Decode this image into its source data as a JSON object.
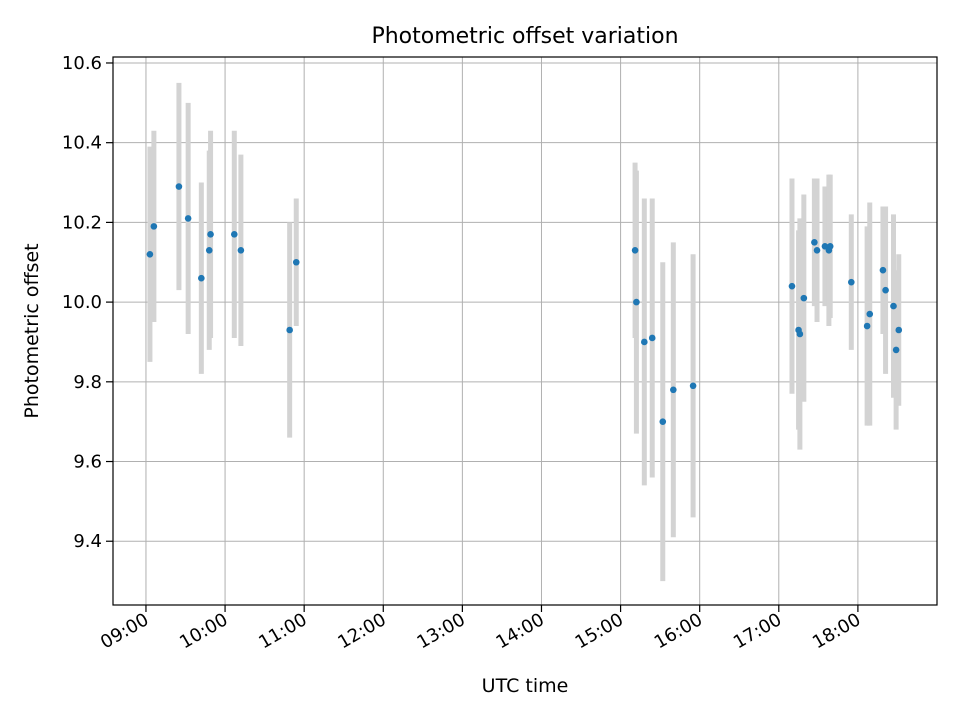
{
  "chart_data": {
    "type": "scatter",
    "title": "Photometric offset variation",
    "xlabel": "UTC time",
    "ylabel": "Photometric offset",
    "xlim": [
      "08:35",
      "19:00"
    ],
    "ylim": [
      9.24,
      10.615
    ],
    "grid": true,
    "x_ticks": [
      "09:00",
      "10:00",
      "11:00",
      "12:00",
      "13:00",
      "14:00",
      "15:00",
      "16:00",
      "17:00",
      "18:00"
    ],
    "y_ticks": [
      "9.4",
      "9.6",
      "9.8",
      "10.0",
      "10.2",
      "10.4",
      "10.6"
    ],
    "marker_color": "#1f77b4",
    "errorbar_color": "#d3d3d3",
    "points": [
      {
        "x": "09:03",
        "y": 10.12,
        "err": 0.27
      },
      {
        "x": "09:06",
        "y": 10.19,
        "err": 0.24
      },
      {
        "x": "09:25",
        "y": 10.29,
        "err": 0.26
      },
      {
        "x": "09:32",
        "y": 10.21,
        "err": 0.29
      },
      {
        "x": "09:42",
        "y": 10.06,
        "err": 0.24
      },
      {
        "x": "09:48",
        "y": 10.13,
        "err": 0.25
      },
      {
        "x": "09:49",
        "y": 10.17,
        "err": 0.26
      },
      {
        "x": "10:07",
        "y": 10.17,
        "err": 0.26
      },
      {
        "x": "10:12",
        "y": 10.13,
        "err": 0.24
      },
      {
        "x": "10:49",
        "y": 9.93,
        "err": 0.27
      },
      {
        "x": "10:54",
        "y": 10.1,
        "err": 0.16
      },
      {
        "x": "15:11",
        "y": 10.13,
        "err": 0.22
      },
      {
        "x": "15:12",
        "y": 10.0,
        "err": 0.33
      },
      {
        "x": "15:18",
        "y": 9.9,
        "err": 0.36
      },
      {
        "x": "15:24",
        "y": 9.91,
        "err": 0.35
      },
      {
        "x": "15:32",
        "y": 9.7,
        "err": 0.4
      },
      {
        "x": "15:40",
        "y": 9.78,
        "err": 0.37
      },
      {
        "x": "15:55",
        "y": 9.79,
        "err": 0.33
      },
      {
        "x": "17:10",
        "y": 10.04,
        "err": 0.27
      },
      {
        "x": "17:15",
        "y": 9.93,
        "err": 0.25
      },
      {
        "x": "17:16",
        "y": 9.92,
        "err": 0.29
      },
      {
        "x": "17:19",
        "y": 10.01,
        "err": 0.26
      },
      {
        "x": "17:27",
        "y": 10.15,
        "err": 0.16
      },
      {
        "x": "17:29",
        "y": 10.13,
        "err": 0.18
      },
      {
        "x": "17:35",
        "y": 10.14,
        "err": 0.15
      },
      {
        "x": "17:38",
        "y": 10.13,
        "err": 0.19
      },
      {
        "x": "17:39",
        "y": 10.14,
        "err": 0.18
      },
      {
        "x": "17:55",
        "y": 10.05,
        "err": 0.17
      },
      {
        "x": "18:07",
        "y": 9.94,
        "err": 0.25
      },
      {
        "x": "18:09",
        "y": 9.97,
        "err": 0.28
      },
      {
        "x": "18:19",
        "y": 10.08,
        "err": 0.16
      },
      {
        "x": "18:21",
        "y": 10.03,
        "err": 0.21
      },
      {
        "x": "18:27",
        "y": 9.99,
        "err": 0.23
      },
      {
        "x": "18:29",
        "y": 9.88,
        "err": 0.2
      },
      {
        "x": "18:31",
        "y": 9.93,
        "err": 0.19
      }
    ]
  }
}
